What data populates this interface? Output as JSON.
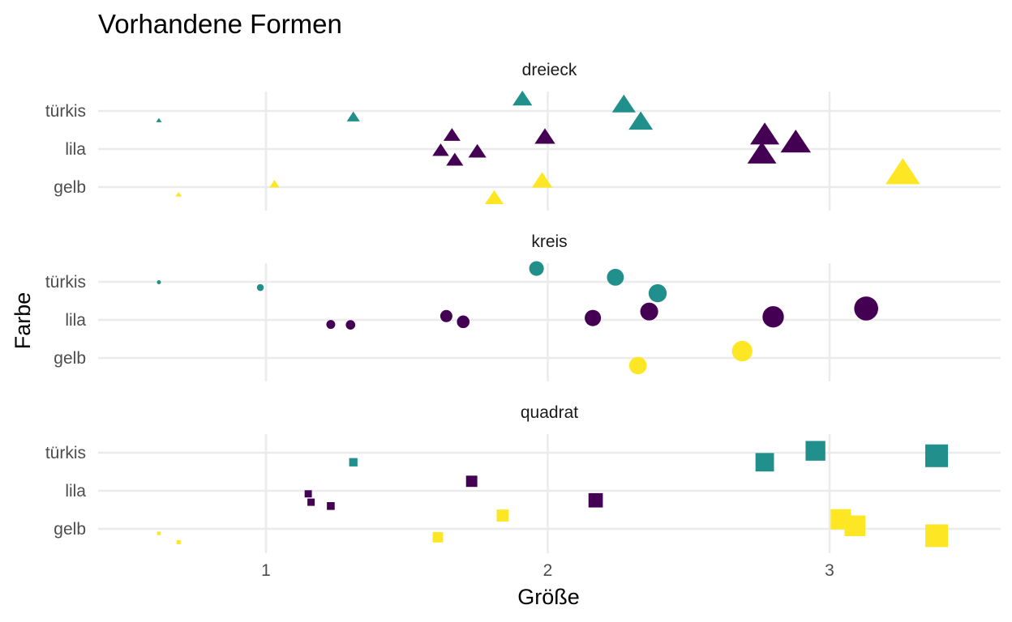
{
  "chart_data": {
    "type": "scatter",
    "title": "Vorhandene Formen",
    "xlabel": "Größe",
    "ylabel": "Farbe",
    "xlim": [
      0.4,
      3.6
    ],
    "x_ticks": [
      "1",
      "2",
      "3"
    ],
    "x_tick_values": [
      1,
      2,
      3
    ],
    "y_categories": [
      "gelb",
      "lila",
      "türkis"
    ],
    "colors": {
      "gelb": "#FDE725",
      "lila": "#440154",
      "türkis": "#21908C"
    },
    "grid": true,
    "legend": "none",
    "facets": [
      {
        "label": "dreieck",
        "shape": "triangle",
        "points": [
          {
            "x": 0.62,
            "color": "türkis",
            "jitter": -0.25,
            "size": 0.62
          },
          {
            "x": 1.31,
            "color": "türkis",
            "jitter": -0.17,
            "size": 1.31
          },
          {
            "x": 1.91,
            "color": "türkis",
            "jitter": 0.3,
            "size": 1.91
          },
          {
            "x": 2.27,
            "color": "türkis",
            "jitter": 0.15,
            "size": 2.27
          },
          {
            "x": 2.33,
            "color": "türkis",
            "jitter": -0.3,
            "size": 2.33
          },
          {
            "x": 1.66,
            "color": "lila",
            "jitter": 0.35,
            "size": 1.66
          },
          {
            "x": 1.62,
            "color": "lila",
            "jitter": -0.05,
            "size": 1.62
          },
          {
            "x": 1.67,
            "color": "lila",
            "jitter": -0.3,
            "size": 1.67
          },
          {
            "x": 1.75,
            "color": "lila",
            "jitter": -0.08,
            "size": 1.75
          },
          {
            "x": 1.99,
            "color": "lila",
            "jitter": 0.3,
            "size": 1.99
          },
          {
            "x": 2.77,
            "color": "lila",
            "jitter": 0.35,
            "size": 2.77
          },
          {
            "x": 2.76,
            "color": "lila",
            "jitter": -0.15,
            "size": 2.76
          },
          {
            "x": 2.88,
            "color": "lila",
            "jitter": 0.15,
            "size": 2.88
          },
          {
            "x": 0.69,
            "color": "gelb",
            "jitter": -0.2,
            "size": 0.69
          },
          {
            "x": 1.03,
            "color": "gelb",
            "jitter": 0.07,
            "size": 1.03
          },
          {
            "x": 1.81,
            "color": "gelb",
            "jitter": -0.3,
            "size": 1.81
          },
          {
            "x": 1.98,
            "color": "gelb",
            "jitter": 0.15,
            "size": 1.98
          },
          {
            "x": 3.26,
            "color": "gelb",
            "jitter": 0.35,
            "size": 3.26
          }
        ]
      },
      {
        "label": "kreis",
        "shape": "circle",
        "points": [
          {
            "x": 0.62,
            "color": "türkis",
            "jitter": -0.01,
            "size": 0.62
          },
          {
            "x": 0.98,
            "color": "türkis",
            "jitter": -0.15,
            "size": 0.98
          },
          {
            "x": 1.96,
            "color": "türkis",
            "jitter": 0.35,
            "size": 1.96
          },
          {
            "x": 2.24,
            "color": "türkis",
            "jitter": 0.12,
            "size": 2.24
          },
          {
            "x": 2.39,
            "color": "türkis",
            "jitter": -0.3,
            "size": 2.39
          },
          {
            "x": 1.23,
            "color": "lila",
            "jitter": -0.12,
            "size": 1.23
          },
          {
            "x": 1.3,
            "color": "lila",
            "jitter": -0.13,
            "size": 1.3
          },
          {
            "x": 1.64,
            "color": "lila",
            "jitter": 0.1,
            "size": 1.64
          },
          {
            "x": 1.7,
            "color": "lila",
            "jitter": -0.05,
            "size": 1.7
          },
          {
            "x": 2.16,
            "color": "lila",
            "jitter": 0.05,
            "size": 2.16
          },
          {
            "x": 2.36,
            "color": "lila",
            "jitter": 0.22,
            "size": 2.36
          },
          {
            "x": 2.8,
            "color": "lila",
            "jitter": 0.08,
            "size": 2.8
          },
          {
            "x": 3.13,
            "color": "lila",
            "jitter": 0.3,
            "size": 3.13
          },
          {
            "x": 2.32,
            "color": "gelb",
            "jitter": -0.2,
            "size": 2.32
          },
          {
            "x": 2.69,
            "color": "gelb",
            "jitter": 0.18,
            "size": 2.69
          }
        ]
      },
      {
        "label": "quadrat",
        "shape": "square",
        "points": [
          {
            "x": 1.31,
            "color": "türkis",
            "jitter": -0.25,
            "size": 1.31
          },
          {
            "x": 2.77,
            "color": "türkis",
            "jitter": -0.25,
            "size": 2.77
          },
          {
            "x": 2.95,
            "color": "türkis",
            "jitter": 0.05,
            "size": 2.95
          },
          {
            "x": 3.38,
            "color": "türkis",
            "jitter": -0.08,
            "size": 3.38
          },
          {
            "x": 1.15,
            "color": "lila",
            "jitter": -0.08,
            "size": 1.15
          },
          {
            "x": 1.16,
            "color": "lila",
            "jitter": -0.3,
            "size": 1.16
          },
          {
            "x": 1.23,
            "color": "lila",
            "jitter": -0.4,
            "size": 1.23
          },
          {
            "x": 1.73,
            "color": "lila",
            "jitter": 0.25,
            "size": 1.73
          },
          {
            "x": 2.17,
            "color": "lila",
            "jitter": -0.25,
            "size": 2.17
          },
          {
            "x": 0.62,
            "color": "gelb",
            "jitter": -0.12,
            "size": 0.62
          },
          {
            "x": 0.69,
            "color": "gelb",
            "jitter": -0.35,
            "size": 0.69
          },
          {
            "x": 1.61,
            "color": "gelb",
            "jitter": -0.22,
            "size": 1.61
          },
          {
            "x": 1.84,
            "color": "gelb",
            "jitter": 0.35,
            "size": 1.84
          },
          {
            "x": 3.04,
            "color": "gelb",
            "jitter": 0.25,
            "size": 3.04
          },
          {
            "x": 3.09,
            "color": "gelb",
            "jitter": 0.08,
            "size": 3.09
          },
          {
            "x": 3.38,
            "color": "gelb",
            "jitter": -0.18,
            "size": 3.38
          }
        ]
      }
    ]
  }
}
